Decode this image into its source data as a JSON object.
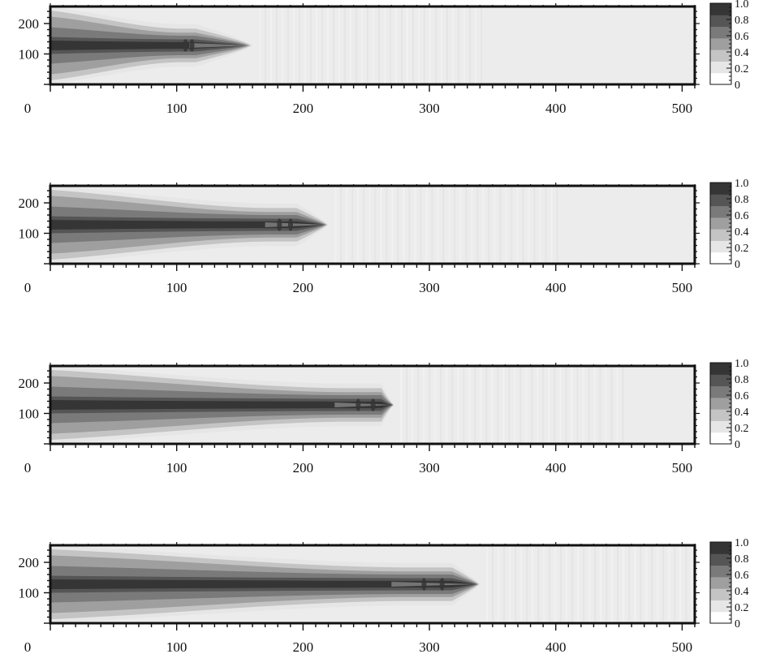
{
  "colors": {
    "colormap": [
      "#ffffff",
      "#e6e6e6",
      "#c4c4c4",
      "#9f9f9f",
      "#7a7a7a",
      "#555555",
      "#353535"
    ],
    "frame": "#111111",
    "background_field": "#ececec"
  },
  "chart_data": [
    {
      "type": "heatmap",
      "panel": 1,
      "x_ticks": [
        "0",
        "100",
        "200",
        "300",
        "400",
        "500"
      ],
      "y_ticks": [
        "100",
        "200"
      ],
      "xlim": [
        0,
        510
      ],
      "ylim": [
        0,
        256
      ],
      "colorbar_ticks": [
        "0",
        "0.2",
        "0.4",
        "0.6",
        "0.8",
        "1.0"
      ],
      "colorbar_range": [
        0,
        1.0
      ],
      "jet_centerline_y": 128,
      "tip_x": 160,
      "head_x": 115,
      "core_end_x": 110
    },
    {
      "type": "heatmap",
      "panel": 2,
      "x_ticks": [
        "0",
        "100",
        "200",
        "300",
        "400",
        "500"
      ],
      "y_ticks": [
        "100",
        "200"
      ],
      "xlim": [
        0,
        510
      ],
      "ylim": [
        0,
        256
      ],
      "colorbar_ticks": [
        "0",
        "0.2",
        "0.4",
        "0.6",
        "0.8",
        "1.0"
      ],
      "colorbar_range": [
        0,
        1.0
      ],
      "jet_centerline_y": 128,
      "tip_x": 220,
      "head_x": 195,
      "core_end_x": 170
    },
    {
      "type": "heatmap",
      "panel": 3,
      "x_ticks": [
        "0",
        "100",
        "200",
        "300",
        "400",
        "500"
      ],
      "y_ticks": [
        "100",
        "200"
      ],
      "xlim": [
        0,
        510
      ],
      "ylim": [
        0,
        256
      ],
      "colorbar_ticks": [
        "0",
        "0.2",
        "0.4",
        "0.6",
        "0.8",
        "1.0"
      ],
      "colorbar_range": [
        0,
        1.0
      ],
      "jet_centerline_y": 128,
      "tip_x": 272,
      "head_x": 262,
      "core_end_x": 225
    },
    {
      "type": "heatmap",
      "panel": 4,
      "x_ticks": [
        "0",
        "100",
        "200",
        "300",
        "400",
        "500"
      ],
      "y_ticks": [
        "100",
        "200"
      ],
      "xlim": [
        0,
        510
      ],
      "ylim": [
        0,
        256
      ],
      "colorbar_ticks": [
        "0",
        "0.2",
        "0.4",
        "0.6",
        "0.8",
        "1.0"
      ],
      "colorbar_range": [
        0,
        1.0
      ],
      "jet_centerline_y": 128,
      "tip_x": 340,
      "head_x": 318,
      "core_end_x": 270
    }
  ]
}
